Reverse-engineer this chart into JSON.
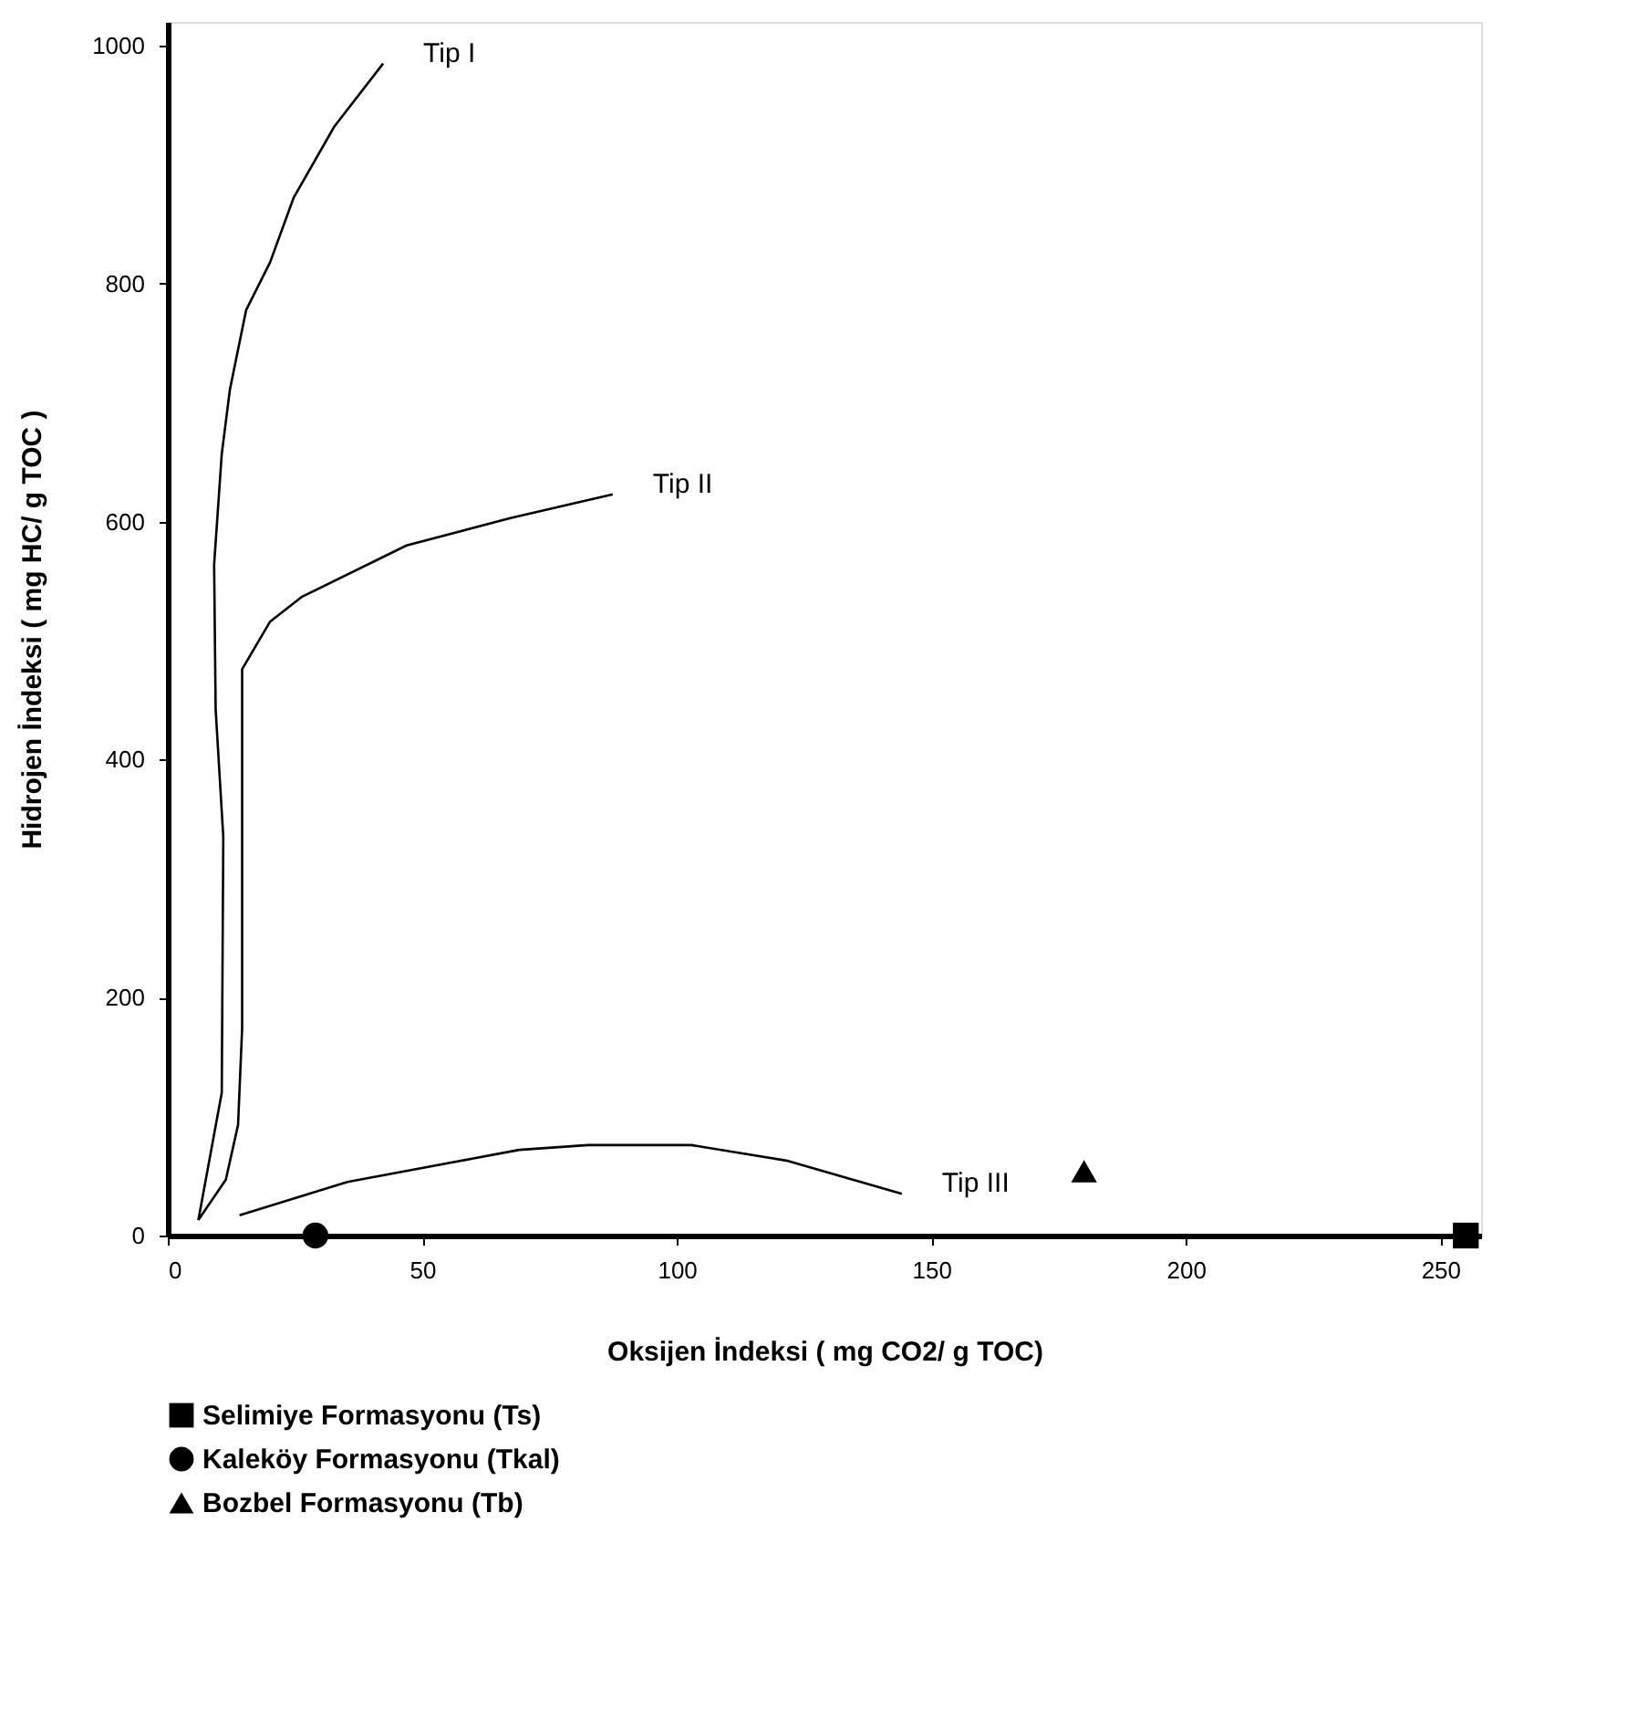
{
  "chart_data": {
    "type": "scatter",
    "xlabel": "Oksijen İndeksi ( mg CO2/ g TOC)",
    "ylabel": "Hidrojen İndeksi ( mg HC/ g TOC )",
    "xlim": [
      0,
      258
    ],
    "ylim": [
      0,
      1020
    ],
    "xticks": [
      0,
      50,
      100,
      150,
      200,
      250
    ],
    "yticks": [
      0,
      200,
      400,
      600,
      800,
      {
        "value": 1000,
        "label": "1000"
      }
    ],
    "grid": false,
    "legend": "bottom",
    "series": [
      {
        "type": "line",
        "color": "#000000",
        "x": [
          6,
          10.6,
          10.9,
          9.4,
          9.1,
          10.6,
          12.2,
          15.4,
          20.1,
          24.7,
          32.7,
          42.3
        ],
        "values": [
          13,
          120,
          335,
          442,
          564,
          657,
          711,
          778,
          818,
          872,
          932,
          985
        ]
      },
      {
        "type": "line",
        "color": "#000000",
        "x": [
          6,
          11.4,
          13.8,
          14.6,
          14.6,
          14.6,
          20.1,
          26.4,
          46.9,
          67.3,
          87.4
        ],
        "values": [
          13,
          47,
          93,
          174,
          389,
          476,
          516,
          537,
          580,
          603,
          623
        ]
      },
      {
        "type": "line",
        "color": "#000000",
        "x": [
          14.1,
          35.3,
          69.0,
          82.5,
          102.9,
          121.5,
          144.2
        ],
        "values": [
          17,
          45,
          72,
          76,
          76,
          63,
          35
        ]
      },
      {
        "name": "Selimiye Formasyonu (Ts)",
        "color": "#000000",
        "marker": "square",
        "x": [
          255
        ],
        "values": [
          0
        ]
      },
      {
        "name": "Kaleköy Formasyonu (Tkal)",
        "color": "#000000",
        "marker": "circle",
        "x": [
          29
        ],
        "values": [
          0
        ]
      },
      {
        "name": "Bozbel Formasyonu (Tb)",
        "color": "#000000",
        "marker": "triangle",
        "x": [
          180
        ],
        "values": [
          54
        ]
      }
    ],
    "annotations": [
      "Tip I",
      "Tip II",
      "Tip III"
    ]
  }
}
